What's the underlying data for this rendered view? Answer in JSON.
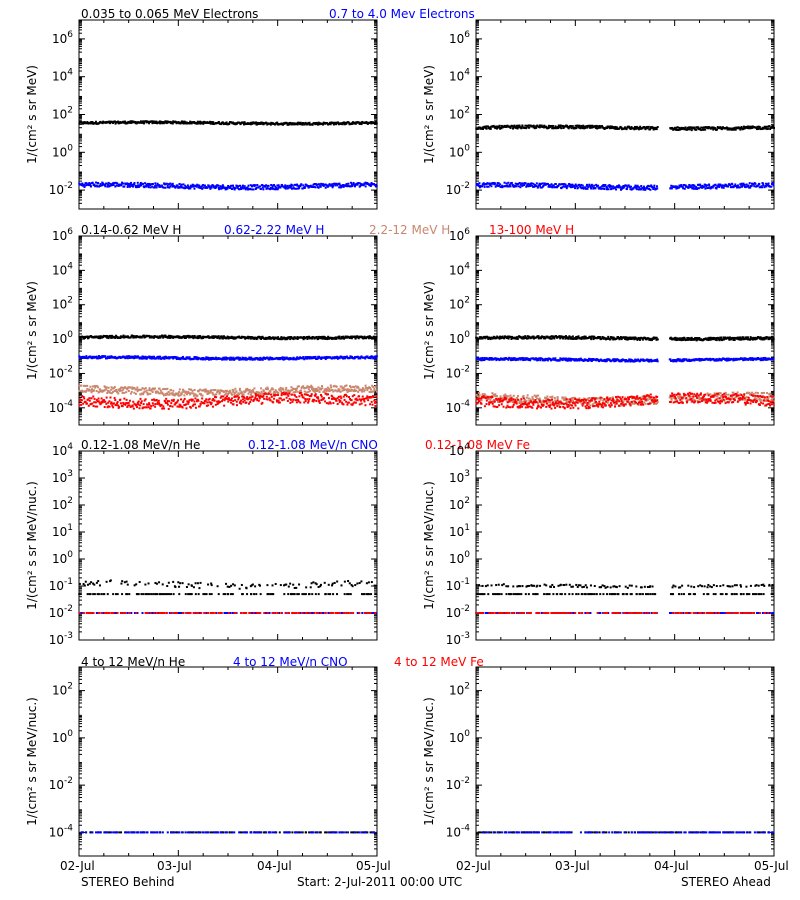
{
  "colors": {
    "black": "#000000",
    "blue": "#0000ff",
    "tan": "#c8876e",
    "red": "#ff0000"
  },
  "footer": {
    "left": "STEREO Behind",
    "center": "Start:  2-Jul-2011 00:00 UTC",
    "right": "STEREO Ahead"
  },
  "chart_data": [
    {
      "type": "scatter",
      "row": 0,
      "legend": [
        {
          "text": "0.035 to 0.065 MeV Electrons",
          "color": "#000000"
        },
        {
          "text": "0.7 to 4.0 Mev Electrons",
          "color": "#0000ff"
        }
      ],
      "ylabel": "1/(cm² s sr MeV)",
      "yscale": "log",
      "ylim_exp": [
        -3,
        7
      ],
      "yticks": [
        {
          "m": "10",
          "e": "6"
        },
        {
          "m": "10",
          "e": "4"
        },
        {
          "m": "10",
          "e": "2"
        },
        {
          "m": "10",
          "e": "0"
        },
        {
          "m": "10",
          "e": "-2"
        }
      ],
      "ytick_exps": [
        6,
        4,
        2,
        0,
        -2
      ],
      "xlim_days": [
        0,
        3
      ],
      "xticks": [
        "02-Jul",
        "03-Jul",
        "04-Jul",
        "05-Jul"
      ],
      "panels": [
        {
          "name": "STEREO Behind",
          "series": [
            {
              "color": "#000000",
              "level_exp": 1.55,
              "jitter": 0.06
            },
            {
              "color": "#0000ff",
              "level_exp": -1.78,
              "jitter": 0.12
            }
          ]
        },
        {
          "name": "STEREO Ahead",
          "gap": [
            1.83,
            1.95
          ],
          "series": [
            {
              "color": "#000000",
              "level_exp": 1.3,
              "jitter": 0.08
            },
            {
              "color": "#0000ff",
              "level_exp": -1.8,
              "jitter": 0.12
            }
          ]
        }
      ]
    },
    {
      "type": "scatter",
      "row": 1,
      "legend": [
        {
          "text": "0.14-0.62 MeV H",
          "color": "#000000"
        },
        {
          "text": "0.62-2.22 MeV H",
          "color": "#0000ff"
        },
        {
          "text": "2.2-12 MeV H",
          "color": "#c8876e"
        },
        {
          "text": "13-100 MeV H",
          "color": "#ff0000"
        }
      ],
      "ylabel": "1/(cm² s sr MeV)",
      "yscale": "log",
      "ylim_exp": [
        -5,
        6
      ],
      "yticks": [
        {
          "m": "10",
          "e": "6"
        },
        {
          "m": "10",
          "e": "4"
        },
        {
          "m": "10",
          "e": "2"
        },
        {
          "m": "10",
          "e": "0"
        },
        {
          "m": "10",
          "e": "-2"
        },
        {
          "m": "10",
          "e": "-4"
        }
      ],
      "ytick_exps": [
        6,
        4,
        2,
        0,
        -2,
        -4
      ],
      "xlim_days": [
        0,
        3
      ],
      "xticks": [
        "02-Jul",
        "03-Jul",
        "04-Jul",
        "05-Jul"
      ],
      "panels": [
        {
          "name": "STEREO Behind",
          "series": [
            {
              "color": "#000000",
              "level_exp": 0.1,
              "jitter": 0.07
            },
            {
              "color": "#0000ff",
              "level_exp": -1.1,
              "jitter": 0.07
            },
            {
              "color": "#c8876e",
              "level_exp": -3.0,
              "jitter": 0.2
            },
            {
              "color": "#ff0000",
              "level_exp": -3.6,
              "jitter": 0.3
            }
          ]
        },
        {
          "name": "STEREO Ahead",
          "gap": [
            1.83,
            1.95
          ],
          "series": [
            {
              "color": "#000000",
              "level_exp": 0.05,
              "jitter": 0.08
            },
            {
              "color": "#0000ff",
              "level_exp": -1.2,
              "jitter": 0.07
            },
            {
              "color": "#c8876e",
              "level_exp": -3.5,
              "jitter": 0.25
            },
            {
              "color": "#ff0000",
              "level_exp": -3.6,
              "jitter": 0.3
            }
          ]
        }
      ]
    },
    {
      "type": "scatter",
      "row": 2,
      "legend": [
        {
          "text": "0.12-1.08 MeV/n He",
          "color": "#000000"
        },
        {
          "text": "0.12-1.08 MeV/n CNO",
          "color": "#0000ff"
        },
        {
          "text": "0.12-1.08 MeV Fe",
          "color": "#ff0000"
        }
      ],
      "ylabel": "1/(cm² s sr MeV/nuc.)",
      "yscale": "log",
      "ylim_exp": [
        -3,
        4
      ],
      "yticks": [
        {
          "m": "10",
          "e": "4"
        },
        {
          "m": "10",
          "e": "3"
        },
        {
          "m": "10",
          "e": "2"
        },
        {
          "m": "10",
          "e": "1"
        },
        {
          "m": "10",
          "e": "0"
        },
        {
          "m": "10",
          "e": "-1"
        },
        {
          "m": "10",
          "e": "-2"
        },
        {
          "m": "10",
          "e": "-3"
        }
      ],
      "ytick_exps": [
        4,
        3,
        2,
        1,
        0,
        -1,
        -2,
        -3
      ],
      "xlim_days": [
        0,
        3
      ],
      "xticks": [
        "02-Jul",
        "03-Jul",
        "04-Jul",
        "05-Jul"
      ],
      "panels": [
        {
          "name": "STEREO Behind",
          "series": [
            {
              "color": "#000000",
              "level_exp": -1.3,
              "jitter": 0.0,
              "sparse": true
            },
            {
              "color": "#000000",
              "level_exp": -0.95,
              "jitter": 0.1,
              "sparse": true
            },
            {
              "color": "#0000ff",
              "level_exp": -2.0,
              "jitter": 0.0,
              "sparse": true
            },
            {
              "color": "#ff0000",
              "level_exp": -2.0,
              "jitter": 0.0,
              "sparse": true
            }
          ]
        },
        {
          "name": "STEREO Ahead",
          "gap": [
            1.83,
            1.95
          ],
          "series": [
            {
              "color": "#000000",
              "level_exp": -1.3,
              "jitter": 0.0,
              "sparse": true
            },
            {
              "color": "#000000",
              "level_exp": -1.0,
              "jitter": 0.05,
              "sparse": true
            },
            {
              "color": "#0000ff",
              "level_exp": -2.0,
              "jitter": 0.0,
              "sparse": true
            },
            {
              "color": "#ff0000",
              "level_exp": -2.0,
              "jitter": 0.0,
              "sparse": true
            }
          ]
        }
      ]
    },
    {
      "type": "scatter",
      "row": 3,
      "legend": [
        {
          "text": "4 to 12 MeV/n He",
          "color": "#000000"
        },
        {
          "text": "4 to 12 MeV/n CNO",
          "color": "#0000ff"
        },
        {
          "text": "4 to 12 MeV Fe",
          "color": "#ff0000"
        }
      ],
      "ylabel": "1/(cm² s sr MeV/nuc.)",
      "yscale": "log",
      "ylim_exp": [
        -5,
        3
      ],
      "yticks": [
        {
          "m": "10",
          "e": "2"
        },
        {
          "m": "10",
          "e": "0"
        },
        {
          "m": "10",
          "e": "-2"
        },
        {
          "m": "10",
          "e": "-4"
        }
      ],
      "ytick_exps": [
        2,
        0,
        -2,
        -4
      ],
      "xlim_days": [
        0,
        3
      ],
      "xticks": [
        "02-Jul",
        "03-Jul",
        "04-Jul",
        "05-Jul"
      ],
      "panels": [
        {
          "name": "STEREO Behind",
          "series": [
            {
              "color": "#000000",
              "level_exp": -4.0,
              "jitter": 0.0,
              "sparse": true
            },
            {
              "color": "#0000ff",
              "level_exp": -4.0,
              "jitter": 0.0,
              "sparse": true
            }
          ]
        },
        {
          "name": "STEREO Ahead",
          "series": [
            {
              "color": "#000000",
              "level_exp": -4.0,
              "jitter": 0.0,
              "sparse": true
            },
            {
              "color": "#0000ff",
              "level_exp": -4.0,
              "jitter": 0.0,
              "sparse": true
            }
          ]
        }
      ]
    }
  ]
}
